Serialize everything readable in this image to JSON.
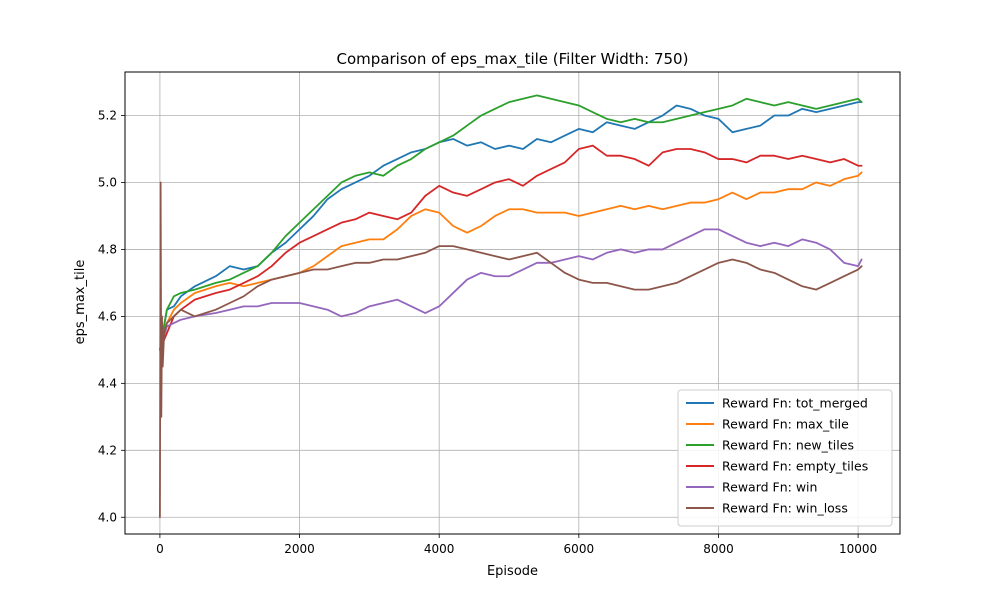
{
  "chart_data": {
    "type": "line",
    "title": "Comparison of eps_max_tile (Filter Width: 750)",
    "xlabel": "Episode",
    "ylabel": "eps_max_tile",
    "xlim": [
      -500,
      10600
    ],
    "ylim": [
      3.95,
      5.33
    ],
    "xticks": [
      0,
      2000,
      4000,
      6000,
      8000,
      10000
    ],
    "yticks": [
      4.0,
      4.2,
      4.4,
      4.6,
      4.8,
      5.0,
      5.2
    ],
    "xtick_labels": [
      "0",
      "2000",
      "4000",
      "6000",
      "8000",
      "10000"
    ],
    "ytick_labels": [
      "4.0",
      "4.2",
      "4.4",
      "4.6",
      "4.8",
      "5.0",
      "5.2"
    ],
    "grid": true,
    "legend_position": "lower-right",
    "series": [
      {
        "name": "Reward Fn: tot_merged",
        "color": "#1f77b4",
        "x": [
          0,
          100,
          200,
          300,
          500,
          800,
          1000,
          1200,
          1400,
          1600,
          1800,
          2000,
          2200,
          2400,
          2600,
          2800,
          3000,
          3200,
          3400,
          3600,
          3800,
          4000,
          4200,
          4400,
          4600,
          4800,
          5000,
          5200,
          5400,
          5600,
          5800,
          6000,
          6200,
          6400,
          6600,
          6800,
          7000,
          7200,
          7400,
          7600,
          7800,
          8000,
          8200,
          8400,
          8600,
          8800,
          9000,
          9200,
          9400,
          9600,
          9800,
          10000,
          10050
        ],
        "y": [
          4.5,
          4.62,
          4.63,
          4.66,
          4.69,
          4.72,
          4.75,
          4.74,
          4.75,
          4.79,
          4.82,
          4.86,
          4.9,
          4.95,
          4.98,
          5.0,
          5.02,
          5.05,
          5.07,
          5.09,
          5.1,
          5.12,
          5.13,
          5.11,
          5.12,
          5.1,
          5.11,
          5.1,
          5.13,
          5.12,
          5.14,
          5.16,
          5.15,
          5.18,
          5.17,
          5.16,
          5.18,
          5.2,
          5.23,
          5.22,
          5.2,
          5.19,
          5.15,
          5.16,
          5.17,
          5.2,
          5.2,
          5.22,
          5.21,
          5.22,
          5.23,
          5.24,
          5.24
        ]
      },
      {
        "name": "Reward Fn: max_tile",
        "color": "#ff7f0e",
        "x": [
          0,
          100,
          200,
          300,
          500,
          800,
          1000,
          1200,
          1400,
          1600,
          1800,
          2000,
          2200,
          2400,
          2600,
          2800,
          3000,
          3200,
          3400,
          3600,
          3800,
          4000,
          4200,
          4400,
          4600,
          4800,
          5000,
          5200,
          5400,
          5600,
          5800,
          6000,
          6200,
          6400,
          6600,
          6800,
          7000,
          7200,
          7400,
          7600,
          7800,
          8000,
          8200,
          8400,
          8600,
          8800,
          9000,
          9200,
          9400,
          9600,
          9800,
          10000,
          10050
        ],
        "y": [
          4.5,
          4.58,
          4.62,
          4.64,
          4.67,
          4.69,
          4.7,
          4.69,
          4.7,
          4.71,
          4.72,
          4.73,
          4.75,
          4.78,
          4.81,
          4.82,
          4.83,
          4.83,
          4.86,
          4.9,
          4.92,
          4.91,
          4.87,
          4.85,
          4.87,
          4.9,
          4.92,
          4.92,
          4.91,
          4.91,
          4.91,
          4.9,
          4.91,
          4.92,
          4.93,
          4.92,
          4.93,
          4.92,
          4.93,
          4.94,
          4.94,
          4.95,
          4.97,
          4.95,
          4.97,
          4.97,
          4.98,
          4.98,
          5.0,
          4.99,
          5.01,
          5.02,
          5.03
        ]
      },
      {
        "name": "Reward Fn: new_tiles",
        "color": "#2ca02c",
        "x": [
          0,
          100,
          200,
          300,
          500,
          800,
          1000,
          1200,
          1400,
          1600,
          1800,
          2000,
          2200,
          2400,
          2600,
          2800,
          3000,
          3200,
          3400,
          3600,
          3800,
          4000,
          4200,
          4400,
          4600,
          4800,
          5000,
          5200,
          5400,
          5600,
          5800,
          6000,
          6200,
          6400,
          6600,
          6800,
          7000,
          7200,
          7400,
          7600,
          7800,
          8000,
          8200,
          8400,
          8600,
          8800,
          9000,
          9200,
          9400,
          9600,
          9800,
          10000,
          10050
        ],
        "y": [
          4.5,
          4.62,
          4.66,
          4.67,
          4.68,
          4.7,
          4.71,
          4.73,
          4.75,
          4.79,
          4.84,
          4.88,
          4.92,
          4.96,
          5.0,
          5.02,
          5.03,
          5.02,
          5.05,
          5.07,
          5.1,
          5.12,
          5.14,
          5.17,
          5.2,
          5.22,
          5.24,
          5.25,
          5.26,
          5.25,
          5.24,
          5.23,
          5.21,
          5.19,
          5.18,
          5.19,
          5.18,
          5.18,
          5.19,
          5.2,
          5.21,
          5.22,
          5.23,
          5.25,
          5.24,
          5.23,
          5.24,
          5.23,
          5.22,
          5.23,
          5.24,
          5.25,
          5.24
        ]
      },
      {
        "name": "Reward Fn: empty_tiles",
        "color": "#d62728",
        "x": [
          0,
          100,
          200,
          300,
          500,
          800,
          1000,
          1200,
          1400,
          1600,
          1800,
          2000,
          2200,
          2400,
          2600,
          2800,
          3000,
          3200,
          3400,
          3600,
          3800,
          4000,
          4200,
          4400,
          4600,
          4800,
          5000,
          5200,
          5400,
          5600,
          5800,
          6000,
          6200,
          6400,
          6600,
          6800,
          7000,
          7200,
          7400,
          7600,
          7800,
          8000,
          8200,
          8400,
          8600,
          8800,
          9000,
          9200,
          9400,
          9600,
          9800,
          10000,
          10050
        ],
        "y": [
          4.5,
          4.55,
          4.6,
          4.62,
          4.65,
          4.67,
          4.68,
          4.7,
          4.72,
          4.75,
          4.79,
          4.82,
          4.84,
          4.86,
          4.88,
          4.89,
          4.91,
          4.9,
          4.89,
          4.91,
          4.96,
          4.99,
          4.97,
          4.96,
          4.98,
          5.0,
          5.01,
          4.99,
          5.02,
          5.04,
          5.06,
          5.1,
          5.11,
          5.08,
          5.08,
          5.07,
          5.05,
          5.09,
          5.1,
          5.1,
          5.09,
          5.07,
          5.07,
          5.06,
          5.08,
          5.08,
          5.07,
          5.08,
          5.07,
          5.06,
          5.07,
          5.05,
          5.05
        ]
      },
      {
        "name": "Reward Fn: win",
        "color": "#9467bd",
        "x": [
          0,
          100,
          200,
          300,
          500,
          800,
          1000,
          1200,
          1400,
          1600,
          1800,
          2000,
          2200,
          2400,
          2600,
          2800,
          3000,
          3200,
          3400,
          3600,
          3800,
          4000,
          4200,
          4400,
          4600,
          4800,
          5000,
          5200,
          5400,
          5600,
          5800,
          6000,
          6200,
          6400,
          6600,
          6800,
          7000,
          7200,
          7400,
          7600,
          7800,
          8000,
          8200,
          8400,
          8600,
          8800,
          9000,
          9200,
          9400,
          9600,
          9800,
          10000,
          10050
        ],
        "y": [
          4.5,
          4.57,
          4.58,
          4.59,
          4.6,
          4.61,
          4.62,
          4.63,
          4.63,
          4.64,
          4.64,
          4.64,
          4.63,
          4.62,
          4.6,
          4.61,
          4.63,
          4.64,
          4.65,
          4.63,
          4.61,
          4.63,
          4.67,
          4.71,
          4.73,
          4.72,
          4.72,
          4.74,
          4.76,
          4.76,
          4.77,
          4.78,
          4.77,
          4.79,
          4.8,
          4.79,
          4.8,
          4.8,
          4.82,
          4.84,
          4.86,
          4.86,
          4.84,
          4.82,
          4.81,
          4.82,
          4.81,
          4.83,
          4.82,
          4.8,
          4.76,
          4.75,
          4.77
        ]
      },
      {
        "name": "Reward Fn: win_loss",
        "color": "#8c564b",
        "x": [
          0,
          10,
          20,
          30,
          40,
          60,
          100,
          200,
          300,
          500,
          800,
          1000,
          1200,
          1400,
          1600,
          1800,
          2000,
          2200,
          2400,
          2600,
          2800,
          3000,
          3200,
          3400,
          3600,
          3800,
          4000,
          4200,
          4400,
          4600,
          4800,
          5000,
          5200,
          5400,
          5600,
          5800,
          6000,
          6200,
          6400,
          6600,
          6800,
          7000,
          7200,
          7400,
          7600,
          7800,
          8000,
          8200,
          8400,
          8600,
          8800,
          9000,
          9200,
          9400,
          9600,
          9800,
          10000,
          10050
        ],
        "y": [
          4.0,
          5.0,
          4.3,
          4.6,
          4.45,
          4.55,
          4.58,
          4.6,
          4.62,
          4.6,
          4.62,
          4.64,
          4.66,
          4.69,
          4.71,
          4.72,
          4.73,
          4.74,
          4.74,
          4.75,
          4.76,
          4.76,
          4.77,
          4.77,
          4.78,
          4.79,
          4.81,
          4.81,
          4.8,
          4.79,
          4.78,
          4.77,
          4.78,
          4.79,
          4.76,
          4.73,
          4.71,
          4.7,
          4.7,
          4.69,
          4.68,
          4.68,
          4.69,
          4.7,
          4.72,
          4.74,
          4.76,
          4.77,
          4.76,
          4.74,
          4.73,
          4.71,
          4.69,
          4.68,
          4.7,
          4.72,
          4.74,
          4.75
        ]
      }
    ]
  }
}
